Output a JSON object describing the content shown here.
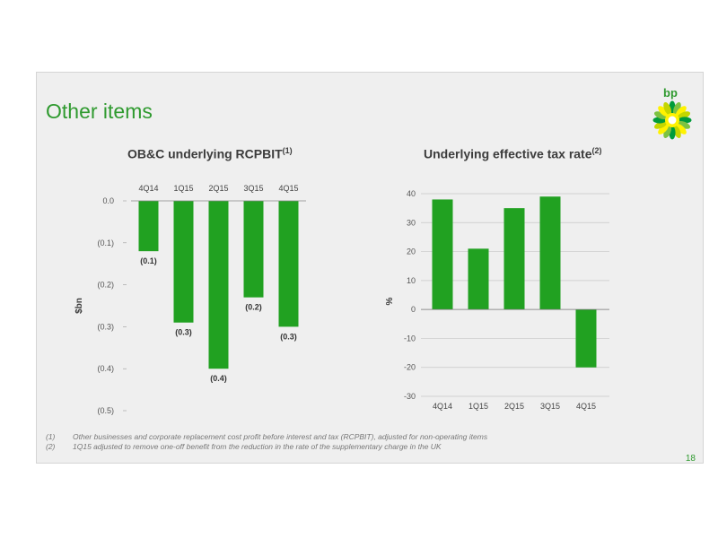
{
  "slide": {
    "title": "Other items",
    "brand": "bp",
    "page_number": "18",
    "brand_color": "#2f9a2f",
    "bar_color": "#21a121"
  },
  "footnotes": [
    {
      "marker": "(1)",
      "text": "Other businesses and corporate replacement cost profit before interest and tax (RCPBIT), adjusted for non-operating items"
    },
    {
      "marker": "(2)",
      "text": "1Q15 adjusted to remove one-off benefit from the reduction in the rate of the supplementary charge in the UK"
    }
  ],
  "chart_data": [
    {
      "type": "bar",
      "title": "OB&C underlying RCPBIT",
      "title_sup": "(1)",
      "ylabel": "$bn",
      "categories": [
        "4Q14",
        "1Q15",
        "2Q15",
        "3Q15",
        "4Q15"
      ],
      "values": [
        -0.12,
        -0.29,
        -0.4,
        -0.23,
        -0.3
      ],
      "data_labels": [
        "(0.1)",
        "(0.3)",
        "(0.4)",
        "(0.2)",
        "(0.3)"
      ],
      "yticks": [
        0,
        -0.1,
        -0.2,
        -0.3,
        -0.4,
        -0.5
      ],
      "ytick_labels": [
        "0.0",
        "(0.1)",
        "(0.2)",
        "(0.3)",
        "(0.4)",
        "(0.5)"
      ],
      "ylim": [
        -0.5,
        0
      ],
      "x_axis_position": "top"
    },
    {
      "type": "bar",
      "title": "Underlying effective tax rate",
      "title_sup": "(2)",
      "ylabel": "%",
      "categories": [
        "4Q14",
        "1Q15",
        "2Q15",
        "3Q15",
        "4Q15"
      ],
      "values": [
        38,
        21,
        35,
        39,
        -20
      ],
      "yticks": [
        40,
        30,
        20,
        10,
        0,
        -10,
        -20,
        -30
      ],
      "ytick_labels": [
        "40",
        "30",
        "20",
        "10",
        "0",
        "-10",
        "-20",
        "-30"
      ],
      "ylim": [
        -30,
        40
      ],
      "x_axis_position": "bottom",
      "grid": true
    }
  ]
}
